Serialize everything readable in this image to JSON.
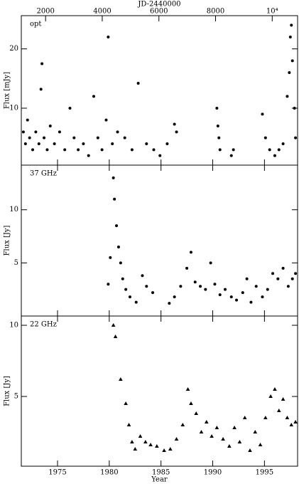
{
  "chart_data": [
    {
      "type": "scatter",
      "panel_label": "opt",
      "ylabel": "Flux [mJy]",
      "marker": "circle",
      "color": "#000000",
      "x2label": "JD-2440000",
      "x2lim": [
        1143,
        10895
      ],
      "x2ticks": [
        2000,
        4000,
        6000,
        8000,
        {
          "value": 10000,
          "label": "10⁴"
        }
      ],
      "xlim": [
        1971.5,
        1998.2
      ],
      "ylim": [
        0.4,
        25.6
      ],
      "yticks": [
        10,
        20
      ],
      "x": [
        1971.7,
        1971.9,
        1972.1,
        1972.3,
        1972.6,
        1972.9,
        1973.2,
        1973.4,
        1973.5,
        1973.7,
        1974.0,
        1974.3,
        1974.7,
        1975.2,
        1975.7,
        1976.2,
        1976.6,
        1977.0,
        1977.5,
        1978.0,
        1978.5,
        1978.9,
        1979.3,
        1979.7,
        1979.9,
        1980.3,
        1980.8,
        1981.5,
        1982.2,
        1982.8,
        1983.6,
        1984.3,
        1984.9,
        1985.6,
        1986.3,
        1986.5,
        1990.4,
        1990.5,
        1990.6,
        1990.7,
        1991.8,
        1992.0,
        1994.8,
        1995.1,
        1995.5,
        1996.0,
        1996.4,
        1996.8,
        1997.2,
        1997.4,
        1997.5,
        1997.6,
        1997.7,
        1997.9,
        1998.0
      ],
      "values": [
        6,
        4,
        8,
        5,
        3,
        6,
        4,
        13.2,
        17.5,
        5,
        3,
        7,
        4,
        6,
        3,
        10,
        5,
        3,
        4,
        2,
        12,
        5,
        3,
        8,
        22,
        4,
        6,
        5,
        3,
        14.2,
        4,
        3,
        2,
        4,
        7.3,
        6,
        10,
        7,
        5,
        3,
        2,
        3,
        9,
        5,
        3,
        2,
        3,
        4,
        12,
        16,
        22,
        24,
        18,
        10,
        5
      ]
    },
    {
      "type": "scatter",
      "panel_label": "37 GHz",
      "ylabel": "Flux [Jy]",
      "marker": "circle",
      "color": "#000000",
      "xlim": [
        1971.5,
        1998.2
      ],
      "ylim": [
        0,
        14.2
      ],
      "yticks": [
        5,
        10
      ],
      "x": [
        1979.9,
        1980.1,
        1980.4,
        1980.5,
        1980.7,
        1980.9,
        1981.1,
        1981.3,
        1981.6,
        1982.0,
        1982.6,
        1983.2,
        1983.6,
        1984.2,
        1985.8,
        1986.3,
        1986.9,
        1987.5,
        1987.9,
        1988.3,
        1988.8,
        1989.3,
        1989.8,
        1990.2,
        1990.7,
        1991.2,
        1991.8,
        1992.3,
        1992.9,
        1993.3,
        1993.7,
        1994.2,
        1994.8,
        1995.3,
        1995.8,
        1996.3,
        1996.8,
        1997.3,
        1997.7,
        1998.0
      ],
      "values": [
        3,
        5.5,
        13,
        11,
        8.5,
        6.5,
        5,
        3.5,
        2.5,
        1.8,
        1.3,
        3.8,
        2.8,
        2.2,
        1.2,
        1.8,
        2.8,
        4.5,
        6,
        3.2,
        2.8,
        2.5,
        5,
        3,
        2,
        2.5,
        1.8,
        1.5,
        2.2,
        3.5,
        1.3,
        2.8,
        1.8,
        2.5,
        4,
        3.5,
        4.5,
        2.8,
        3.5,
        4
      ]
    },
    {
      "type": "scatter",
      "panel_label": "22 GHz",
      "ylabel": "Flux [Jy]",
      "marker": "triangle",
      "color": "#000000",
      "xlabel": "Year",
      "xlim": [
        1971.5,
        1998.2
      ],
      "xticks": [
        1975,
        1980,
        1985,
        1990,
        1995
      ],
      "ylim": [
        0.1,
        10.65
      ],
      "yticks": [
        5,
        10
      ],
      "x": [
        1980.4,
        1980.6,
        1981.1,
        1981.6,
        1981.9,
        1982.2,
        1982.5,
        1983.0,
        1983.5,
        1984.0,
        1984.6,
        1985.3,
        1985.9,
        1986.5,
        1987.1,
        1987.6,
        1987.9,
        1988.4,
        1988.9,
        1989.4,
        1989.9,
        1990.4,
        1991.0,
        1991.6,
        1992.1,
        1992.6,
        1993.1,
        1993.6,
        1994.1,
        1994.6,
        1995.1,
        1995.6,
        1996.0,
        1996.4,
        1996.8,
        1997.2,
        1997.6,
        1998.0
      ],
      "values": [
        10,
        9.2,
        6.2,
        4.5,
        3,
        1.8,
        1.3,
        2.2,
        1.8,
        1.6,
        1.5,
        1.2,
        1.3,
        2,
        3,
        5.5,
        4.5,
        3.8,
        2.5,
        3.2,
        2.2,
        2.8,
        2,
        1.5,
        2.8,
        1.8,
        3.5,
        1.2,
        2.5,
        1.6,
        3.5,
        5,
        5.5,
        4,
        4.8,
        3.5,
        3,
        3.2
      ]
    }
  ]
}
